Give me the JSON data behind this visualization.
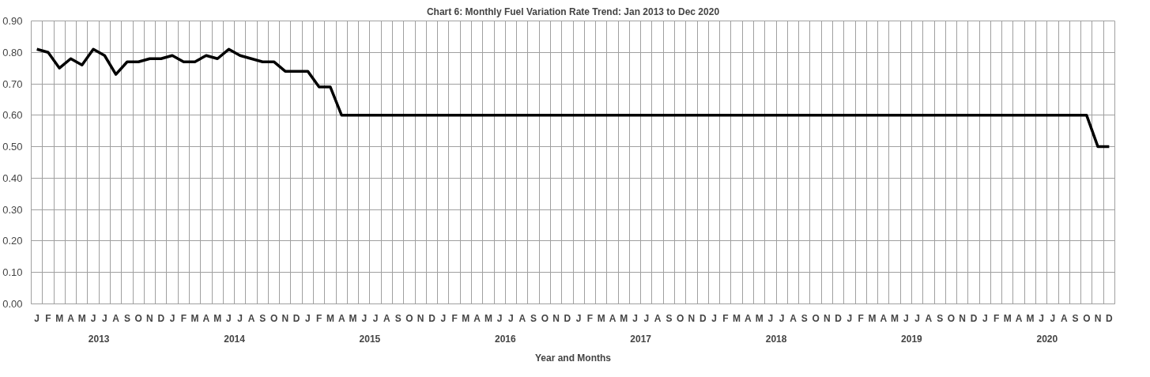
{
  "chart_data": {
    "type": "line",
    "title": "Chart 6: Monthly Fuel Variation Rate Trend: Jan 2013 to Dec 2020",
    "xlabel": "Year and Months",
    "categories": [
      "J",
      "F",
      "M",
      "A",
      "M",
      "J",
      "J",
      "A",
      "S",
      "O",
      "N",
      "D",
      "J",
      "F",
      "M",
      "A",
      "M",
      "J",
      "J",
      "A",
      "S",
      "O",
      "N",
      "D",
      "J",
      "F",
      "M",
      "A",
      "M",
      "J",
      "J",
      "A",
      "S",
      "O",
      "N",
      "D",
      "J",
      "F",
      "M",
      "A",
      "M",
      "J",
      "J",
      "A",
      "S",
      "O",
      "N",
      "D",
      "J",
      "F",
      "M",
      "A",
      "M",
      "J",
      "J",
      "A",
      "S",
      "O",
      "N",
      "D",
      "J",
      "F",
      "M",
      "A",
      "M",
      "J",
      "J",
      "A",
      "S",
      "O",
      "N",
      "D",
      "J",
      "F",
      "M",
      "A",
      "M",
      "J",
      "J",
      "A",
      "S",
      "O",
      "N",
      "D",
      "J",
      "F",
      "M",
      "A",
      "M",
      "J",
      "J",
      "A",
      "S",
      "O",
      "N",
      "D"
    ],
    "annotations": [
      "2013",
      "2014",
      "2015",
      "2016",
      "2017",
      "2018",
      "2019",
      "2020"
    ],
    "series": [
      {
        "color": "#000000",
        "values": [
          0.81,
          0.8,
          0.75,
          0.78,
          0.76,
          0.81,
          0.79,
          0.73,
          0.77,
          0.77,
          0.78,
          0.78,
          0.79,
          0.77,
          0.77,
          0.79,
          0.78,
          0.81,
          0.79,
          0.78,
          0.77,
          0.77,
          0.74,
          0.74,
          0.74,
          0.69,
          0.69,
          0.6,
          0.6,
          0.6,
          0.6,
          0.6,
          0.6,
          0.6,
          0.6,
          0.6,
          0.6,
          0.6,
          0.6,
          0.6,
          0.6,
          0.6,
          0.6,
          0.6,
          0.6,
          0.6,
          0.6,
          0.6,
          0.6,
          0.6,
          0.6,
          0.6,
          0.6,
          0.6,
          0.6,
          0.6,
          0.6,
          0.6,
          0.6,
          0.6,
          0.6,
          0.6,
          0.6,
          0.6,
          0.6,
          0.6,
          0.6,
          0.6,
          0.6,
          0.6,
          0.6,
          0.6,
          0.6,
          0.6,
          0.6,
          0.6,
          0.6,
          0.6,
          0.6,
          0.6,
          0.6,
          0.6,
          0.6,
          0.6,
          0.6,
          0.6,
          0.6,
          0.6,
          0.6,
          0.6,
          0.6,
          0.6,
          0.6,
          0.6,
          0.5,
          0.5
        ]
      }
    ],
    "ylim": [
      0,
      0.9
    ],
    "yticks": [
      {
        "value": 0,
        "label": "0.00"
      },
      {
        "value": 0.1,
        "label": "0.10"
      },
      {
        "value": 0.2,
        "label": "0.20"
      },
      {
        "value": 0.3,
        "label": "0.30"
      },
      {
        "value": 0.4,
        "label": "0.40"
      },
      {
        "value": 0.5,
        "label": "0.50"
      },
      {
        "value": 0.6,
        "label": "0.60"
      },
      {
        "value": 0.7,
        "label": "0.70"
      },
      {
        "value": 0.8,
        "label": "0.80"
      },
      {
        "value": 0.9,
        "label": "0.90"
      }
    ],
    "grid": true,
    "marker": "none",
    "line_style": "solid"
  }
}
